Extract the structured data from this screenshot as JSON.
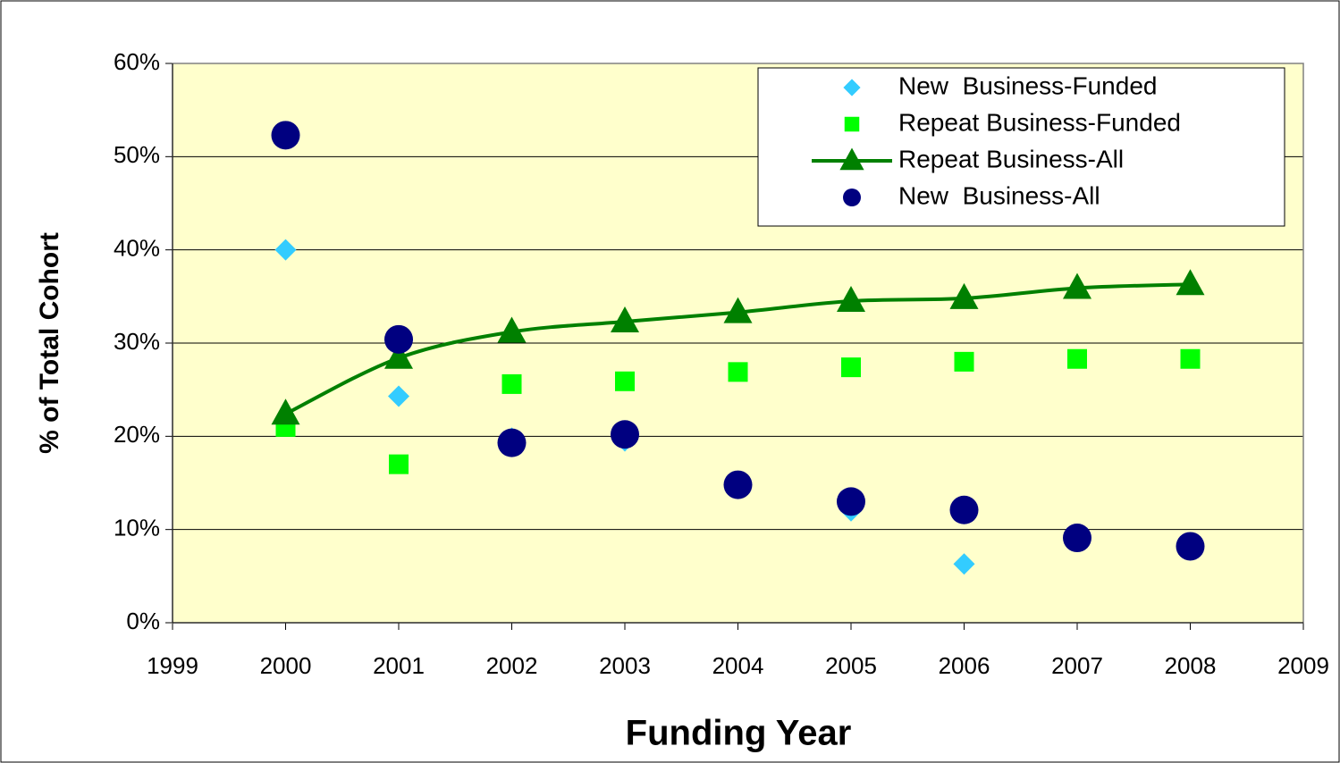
{
  "chart_data": {
    "type": "scatter",
    "xlabel": "Funding Year",
    "ylabel": "% of Total Cohort",
    "x": [
      2000,
      2001,
      2002,
      2003,
      2004,
      2005,
      2006,
      2007,
      2008
    ],
    "series": [
      {
        "name": "New  Business-Funded",
        "color": "#33ccff",
        "marker": "diamond",
        "line": false,
        "values": [
          40,
          24.3,
          19.8,
          19.5,
          14.8,
          12,
          6.3,
          9,
          7.8
        ]
      },
      {
        "name": "Repeat Business-Funded",
        "color": "#00ff00",
        "marker": "square",
        "line": false,
        "values": [
          21,
          17,
          25.6,
          25.9,
          26.9,
          27.4,
          28,
          28.3,
          28.3
        ]
      },
      {
        "name": "Repeat Business-All",
        "color": "#008000",
        "marker": "triangle",
        "line": true,
        "values": [
          22.4,
          28.4,
          31.2,
          32.3,
          33.3,
          34.5,
          34.8,
          35.9,
          36.3
        ]
      },
      {
        "name": "New  Business-All",
        "color": "#000080",
        "marker": "circle",
        "line": false,
        "values": [
          52.3,
          30.4,
          19.3,
          20.2,
          14.8,
          13,
          12.1,
          9.1,
          8.2
        ]
      }
    ],
    "xlim": [
      1999,
      2009
    ],
    "xticks": [
      1999,
      2000,
      2001,
      2002,
      2003,
      2004,
      2005,
      2006,
      2007,
      2008,
      2009
    ],
    "ylim": [
      0,
      60
    ],
    "yticks": [
      {
        "value": 0,
        "label": "0%"
      },
      {
        "value": 10,
        "label": "10%"
      },
      {
        "value": 20,
        "label": "20%"
      },
      {
        "value": 30,
        "label": "30%"
      },
      {
        "value": 40,
        "label": "40%"
      },
      {
        "value": 50,
        "label": "50%"
      },
      {
        "value": 60,
        "label": "60%"
      }
    ],
    "grid": true,
    "legend": "upper right",
    "plot_background": "#ffffcc"
  }
}
